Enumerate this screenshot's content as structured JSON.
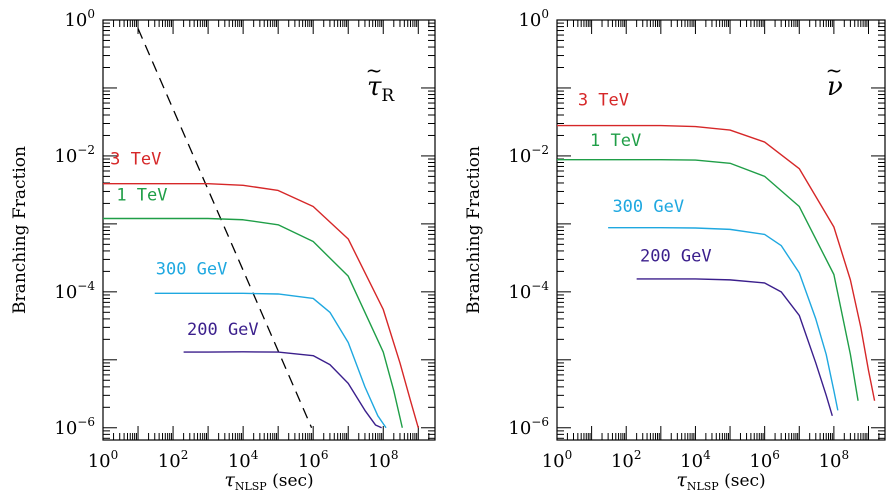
{
  "chart_data": [
    {
      "type": "line",
      "panel_label_base": "τ",
      "panel_label_sub": "R",
      "panel_label_tilde": "~",
      "xlabel_base": "τ",
      "xlabel_sub": "NLSP",
      "xlabel_rest": "(sec)",
      "ylabel": "Branching Fraction",
      "x_scale": "log",
      "y_scale": "log",
      "xlim": [
        1,
        3000000000
      ],
      "ylim": [
        1e-06,
        1
      ],
      "x_ticks": [
        {
          "value": 1,
          "base": "10",
          "exp": "0"
        },
        {
          "value": 100,
          "base": "10",
          "exp": "2"
        },
        {
          "value": 10000,
          "base": "10",
          "exp": "4"
        },
        {
          "value": 1000000,
          "base": "10",
          "exp": "6"
        },
        {
          "value": 100000000,
          "base": "10",
          "exp": "8"
        }
      ],
      "y_ticks": [
        {
          "value": 1,
          "base": "10",
          "exp": "0"
        },
        {
          "value": 0.01,
          "base": "10",
          "exp": "−2"
        },
        {
          "value": 0.0001,
          "base": "10",
          "exp": "−4"
        },
        {
          "value": 1e-06,
          "base": "10",
          "exp": "−6"
        }
      ],
      "series": [
        {
          "name": "3 TeV",
          "color": "#d62728",
          "x": [
            1,
            10,
            100,
            1000,
            10000,
            100000,
            1000000,
            10000000,
            100000000,
            300000000,
            600000000,
            1000000000
          ],
          "y": [
            0.0039,
            0.0039,
            0.0039,
            0.0039,
            0.0037,
            0.0031,
            0.0018,
            0.0006,
            5.5e-05,
            9e-06,
            2.5e-06,
            1e-06
          ],
          "label_x": 1.6,
          "label_y": 0.0075
        },
        {
          "name": "1 TeV",
          "color": "#1f9e47",
          "x": [
            1,
            10,
            100,
            1000,
            10000,
            100000,
            1000000,
            10000000,
            100000000,
            200000000,
            350000000
          ],
          "y": [
            0.0012,
            0.0012,
            0.0012,
            0.0012,
            0.00115,
            0.00097,
            0.00055,
            0.00017,
            1.3e-05,
            3.5e-06,
            1e-06
          ],
          "label_x": 2.4,
          "label_y": 0.0022
        },
        {
          "name": "300 GeV",
          "color": "#1fa8e0",
          "x": [
            30,
            100,
            1000,
            10000,
            100000,
            1000000,
            3000000,
            10000000,
            30000000,
            70000000,
            120000000
          ],
          "y": [
            9.5e-05,
            9.5e-05,
            9.5e-05,
            9.5e-05,
            9.3e-05,
            8e-05,
            5e-05,
            1.8e-05,
            4e-06,
            1.5e-06,
            1e-06
          ],
          "label_x": 32,
          "label_y": 0.00018
        },
        {
          "name": "200 GeV",
          "color": "#3b1f8c",
          "x": [
            200,
            1000,
            10000,
            100000,
            1000000,
            3000000,
            10000000,
            30000000,
            60000000,
            90000000
          ],
          "y": [
            1.3e-05,
            1.3e-05,
            1.31e-05,
            1.3e-05,
            1.15e-05,
            8.5e-06,
            4.5e-06,
            1.8e-06,
            1.1e-06,
            1e-06
          ],
          "label_x": 250,
          "label_y": 2.3e-05
        }
      ],
      "dashed_line": {
        "color": "#000000",
        "x": [
          10,
          900000
        ],
        "y": [
          0.75,
          1e-06
        ]
      }
    },
    {
      "type": "line",
      "panel_label_base": "ν",
      "panel_label_sub": "",
      "panel_label_tilde": "~",
      "xlabel_base": "τ",
      "xlabel_sub": "NLSP",
      "xlabel_rest": "(sec)",
      "ylabel": "Branching Fraction",
      "x_scale": "log",
      "y_scale": "log",
      "xlim": [
        1,
        3000000000
      ],
      "ylim": [
        1e-06,
        1
      ],
      "x_ticks": [
        {
          "value": 1,
          "base": "10",
          "exp": "0"
        },
        {
          "value": 100,
          "base": "10",
          "exp": "2"
        },
        {
          "value": 10000,
          "base": "10",
          "exp": "4"
        },
        {
          "value": 1000000,
          "base": "10",
          "exp": "6"
        },
        {
          "value": 100000000,
          "base": "10",
          "exp": "8"
        }
      ],
      "y_ticks": [
        {
          "value": 1,
          "base": "10",
          "exp": "0"
        },
        {
          "value": 0.01,
          "base": "10",
          "exp": "−2"
        },
        {
          "value": 0.0001,
          "base": "10",
          "exp": "−4"
        },
        {
          "value": 1e-06,
          "base": "10",
          "exp": "−6"
        }
      ],
      "series": [
        {
          "name": "3 TeV",
          "color": "#d62728",
          "x": [
            1,
            10,
            100,
            1000,
            10000,
            100000,
            1000000,
            10000000,
            100000000,
            300000000,
            600000000,
            1000000000,
            1500000000
          ],
          "y": [
            0.028,
            0.028,
            0.028,
            0.028,
            0.027,
            0.024,
            0.016,
            0.0065,
            0.0009,
            0.00015,
            3e-05,
            7e-06,
            2.5e-06
          ],
          "label_x": 4,
          "label_y": 0.055
        },
        {
          "name": "1 TeV",
          "color": "#1f9e47",
          "x": [
            1,
            10,
            100,
            1000,
            10000,
            100000,
            1000000,
            10000000,
            100000000,
            300000000,
            500000000
          ],
          "y": [
            0.0088,
            0.0088,
            0.0088,
            0.0088,
            0.0087,
            0.0078,
            0.005,
            0.0018,
            0.00018,
            1.2e-05,
            2.5e-06
          ],
          "label_x": 9,
          "label_y": 0.014
        },
        {
          "name": "300 GeV",
          "color": "#1fa8e0",
          "x": [
            30,
            100,
            1000,
            10000,
            100000,
            1000000,
            3000000,
            10000000,
            30000000,
            60000000,
            100000000,
            130000000
          ],
          "y": [
            0.00088,
            0.00088,
            0.00088,
            0.00087,
            0.00083,
            0.0007,
            0.00048,
            0.00019,
            4e-05,
            1.2e-05,
            3.5e-06,
            1.8e-06
          ],
          "label_x": 40,
          "label_y": 0.0015
        },
        {
          "name": "200 GeV",
          "color": "#3b1f8c",
          "x": [
            200,
            1000,
            10000,
            100000,
            1000000,
            3000000,
            10000000,
            30000000,
            60000000,
            90000000
          ],
          "y": [
            0.000155,
            0.000155,
            0.000155,
            0.00015,
            0.000135,
            0.0001,
            4.5e-05,
            9e-06,
            3e-06,
            1.5e-06
          ],
          "label_x": 250,
          "label_y": 0.00028
        }
      ]
    }
  ]
}
